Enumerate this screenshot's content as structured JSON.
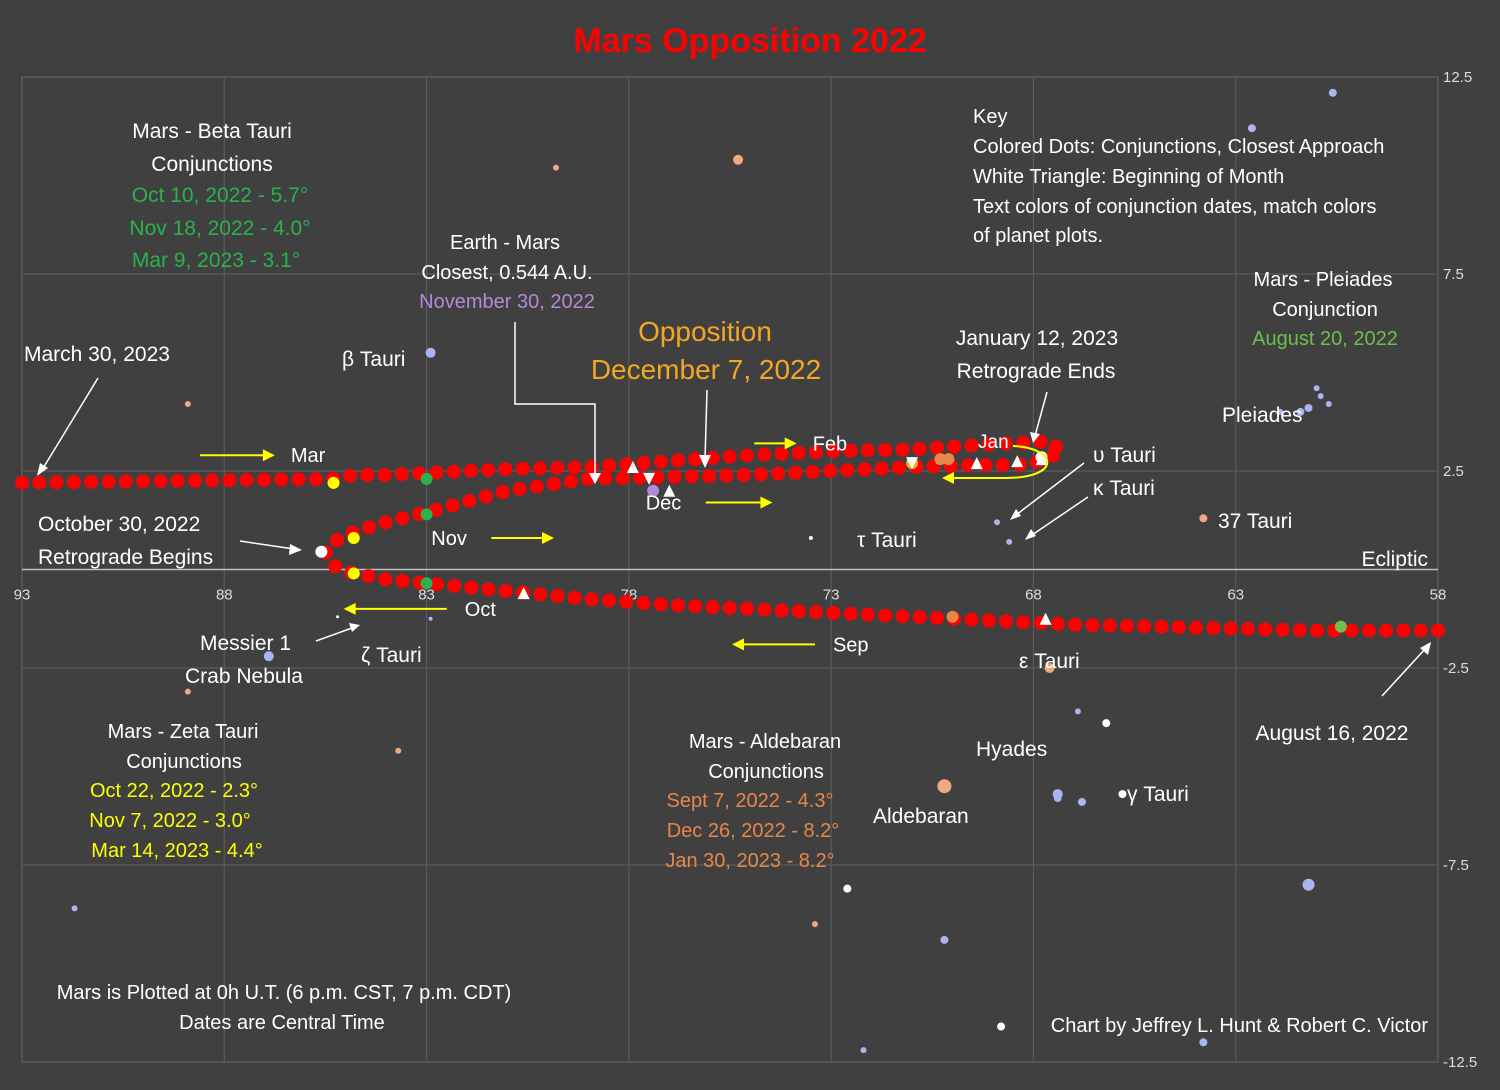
{
  "chart_data": {
    "type": "scatter",
    "title": "Mars Opposition 2022",
    "xlim": [
      93,
      58
    ],
    "ylim": [
      -12.5,
      12.5
    ],
    "x_ticks": [
      93,
      88,
      83,
      78,
      73,
      68,
      63,
      58
    ],
    "y_ticks": [
      12.5,
      7.5,
      2.5,
      -2.5,
      -7.5,
      -12.5
    ],
    "grid": true,
    "ecliptic_label": "Ecliptic",
    "colors": {
      "background": "#404040",
      "title": "#ff0000",
      "mars": "#ff0000",
      "text": "#ffffff",
      "green": "#2bb24c",
      "lavender": "#b38ad6",
      "gold": "#f5a623",
      "yellow": "#ffff00",
      "orange": "#e8864a",
      "light_green": "#6fbf4a",
      "star_blue": "#aab4f0",
      "star_orange": "#f0a880",
      "star_white": "#ffffff"
    },
    "mars_path": {
      "x": [
        93,
        85.3,
        84.8,
        84.0,
        83.0,
        81.0,
        79.0,
        77.0,
        75.0,
        73.0,
        71.0,
        69.5,
        68.7,
        67.6,
        67.3,
        67.8,
        68.4,
        69.4,
        71.0,
        73.0,
        75.0,
        77.0,
        79.0,
        81.0,
        83.0,
        84.0,
        84.8,
        85.3,
        85.5,
        85.3,
        84.8,
        84.0,
        83.0,
        81.0,
        79.0,
        77.0,
        75.0,
        73.0,
        71.0,
        69.0,
        67.0,
        65.0,
        63.0,
        61.0,
        58.0
      ],
      "y": [
        2.2,
        2.3,
        2.4,
        2.4,
        2.45,
        2.55,
        2.6,
        2.75,
        2.9,
        3.0,
        3.05,
        3.15,
        3.2,
        3.25,
        3.0,
        2.75,
        2.65,
        2.65,
        2.6,
        2.5,
        2.4,
        2.35,
        2.3,
        2.0,
        1.45,
        1.2,
        0.95,
        0.7,
        0.45,
        0.1,
        -0.1,
        -0.25,
        -0.35,
        -0.55,
        -0.75,
        -0.9,
        -1.0,
        -1.1,
        -1.2,
        -1.3,
        -1.4,
        -1.45,
        -1.5,
        -1.55,
        -1.55
      ]
    },
    "mars_count": 170,
    "conjunction_dots": [
      {
        "x": 85.3,
        "y": 2.2,
        "color": "yellow"
      },
      {
        "x": 83.0,
        "y": 2.3,
        "color": "green"
      },
      {
        "x": 83.0,
        "y": 1.4,
        "color": "green"
      },
      {
        "x": 84.8,
        "y": 0.8,
        "color": "yellow"
      },
      {
        "x": 84.8,
        "y": -0.1,
        "color": "yellow"
      },
      {
        "x": 83.0,
        "y": -0.35,
        "color": "green"
      },
      {
        "x": 71.0,
        "y": 2.7,
        "color": "gold"
      },
      {
        "x": 77.4,
        "y": 2.0,
        "color": "lavender"
      },
      {
        "x": 70.1,
        "y": 2.8,
        "color": "orange"
      },
      {
        "x": 70.3,
        "y": 2.8,
        "color": "orange"
      },
      {
        "x": 70.0,
        "y": -1.2,
        "color": "orange"
      },
      {
        "x": 60.4,
        "y": -1.45,
        "color": "light_green"
      }
    ],
    "month_triangles": [
      {
        "x": 77.5,
        "y": 2.3,
        "dir": "down"
      },
      {
        "x": 77.9,
        "y": 2.6,
        "dir": "up"
      },
      {
        "x": 77.0,
        "y": 2.0,
        "dir": "up"
      },
      {
        "x": 71.0,
        "y": 2.7,
        "dir": "down"
      },
      {
        "x": 69.4,
        "y": 2.7,
        "dir": "up"
      },
      {
        "x": 67.8,
        "y": 2.8,
        "dir": "up"
      },
      {
        "x": 68.4,
        "y": 2.75,
        "dir": "up"
      },
      {
        "x": 80.6,
        "y": -0.6,
        "dir": "up"
      },
      {
        "x": 67.7,
        "y": -1.25,
        "dir": "up"
      }
    ],
    "special_points": [
      {
        "x": 85.6,
        "y": 0.45,
        "name": "retrograde-begins"
      },
      {
        "x": 67.8,
        "y": 2.85,
        "name": "retrograde-ends"
      }
    ],
    "stars": [
      {
        "x": 82.9,
        "y": 5.5,
        "size": 5,
        "color": "star_blue"
      },
      {
        "x": 82.9,
        "y": -1.25,
        "size": 2,
        "color": "star_blue"
      },
      {
        "x": 85.2,
        "y": -1.2,
        "size": 1.5,
        "color": "star_white"
      },
      {
        "x": 86.9,
        "y": -2.2,
        "size": 5,
        "color": "star_blue"
      },
      {
        "x": 88.9,
        "y": 4.2,
        "size": 3,
        "color": "star_orange"
      },
      {
        "x": 88.9,
        "y": -3.1,
        "size": 3,
        "color": "star_orange"
      },
      {
        "x": 83.7,
        "y": -4.6,
        "size": 3,
        "color": "star_orange"
      },
      {
        "x": 91.7,
        "y": -8.6,
        "size": 3,
        "color": "star_blue"
      },
      {
        "x": 79.8,
        "y": 10.2,
        "size": 3,
        "color": "star_orange"
      },
      {
        "x": 75.3,
        "y": 10.4,
        "size": 5,
        "color": "star_orange"
      },
      {
        "x": 73.5,
        "y": 0.8,
        "size": 2,
        "color": "star_white"
      },
      {
        "x": 68.9,
        "y": 1.2,
        "size": 3,
        "color": "star_blue"
      },
      {
        "x": 68.6,
        "y": 0.7,
        "size": 3,
        "color": "star_blue"
      },
      {
        "x": 63.8,
        "y": 1.3,
        "size": 4,
        "color": "star_orange"
      },
      {
        "x": 61.9,
        "y": 4.0,
        "size": 3,
        "color": "star_blue"
      },
      {
        "x": 61.4,
        "y": 4.0,
        "size": 4,
        "color": "star_blue"
      },
      {
        "x": 61.2,
        "y": 4.1,
        "size": 4,
        "color": "star_blue"
      },
      {
        "x": 61.0,
        "y": 4.6,
        "size": 3,
        "color": "star_blue"
      },
      {
        "x": 60.9,
        "y": 4.4,
        "size": 3,
        "color": "star_blue"
      },
      {
        "x": 60.7,
        "y": 4.2,
        "size": 3,
        "color": "star_blue"
      },
      {
        "x": 62.6,
        "y": 11.2,
        "size": 4,
        "color": "star_blue"
      },
      {
        "x": 60.6,
        "y": 12.1,
        "size": 4,
        "color": "star_blue"
      },
      {
        "x": 67.6,
        "y": -2.5,
        "size": 5,
        "color": "star_orange"
      },
      {
        "x": 66.9,
        "y": -3.6,
        "size": 3,
        "color": "star_blue"
      },
      {
        "x": 66.2,
        "y": -3.9,
        "size": 4,
        "color": "star_white"
      },
      {
        "x": 70.2,
        "y": -5.5,
        "size": 7,
        "color": "star_orange"
      },
      {
        "x": 67.4,
        "y": -5.7,
        "size": 5,
        "color": "star_blue"
      },
      {
        "x": 67.4,
        "y": -5.8,
        "size": 4,
        "color": "star_blue"
      },
      {
        "x": 66.8,
        "y": -5.9,
        "size": 4,
        "color": "star_blue"
      },
      {
        "x": 65.8,
        "y": -5.7,
        "size": 4,
        "color": "star_white"
      },
      {
        "x": 61.2,
        "y": -8.0,
        "size": 6,
        "color": "star_blue"
      },
      {
        "x": 72.6,
        "y": -8.1,
        "size": 4,
        "color": "star_white"
      },
      {
        "x": 73.4,
        "y": -9.0,
        "size": 3,
        "color": "star_orange"
      },
      {
        "x": 70.2,
        "y": -9.4,
        "size": 4,
        "color": "star_blue"
      },
      {
        "x": 68.8,
        "y": -11.6,
        "size": 4,
        "color": "star_white"
      },
      {
        "x": 72.2,
        "y": -12.2,
        "size": 3,
        "color": "star_blue"
      },
      {
        "x": 63.8,
        "y": -12.0,
        "size": 4,
        "color": "star_blue"
      }
    ],
    "month_arrows": [
      {
        "label": "Mar",
        "x": 87.4,
        "y": 2.9,
        "x1": 88.6,
        "x2": 86.8,
        "label_side": "right"
      },
      {
        "label": "Feb",
        "x": 73.1,
        "y": 3.2,
        "x1": 74.9,
        "x2": 73.9,
        "label_side": "right"
      },
      {
        "label": "Dec",
        "x": 75.4,
        "y": 1.7,
        "x1": 76.1,
        "x2": 74.5,
        "label_side": "left"
      },
      {
        "label": "Nov",
        "x": 82.5,
        "y": 0.8,
        "x1": 81.4,
        "x2": 79.9,
        "label_side": "left"
      },
      {
        "label": "Oct",
        "x": 81.0,
        "y": -1.0,
        "x1": 82.5,
        "x2": 85.0,
        "label_side": "right"
      },
      {
        "label": "Sep",
        "x": 72.5,
        "y": -1.9,
        "x1": 73.4,
        "x2": 75.4,
        "label_side": "right"
      }
    ],
    "annotations": {
      "beta": {
        "title1": "Mars - Beta Tauri",
        "title2": "Conjunctions",
        "dates": [
          "Oct 10, 2022 - 5.7°",
          "Nov 18, 2022 - 4.0°",
          "Mar 9, 2023 - 3.1°"
        ]
      },
      "earth": {
        "title1": "Earth - Mars",
        "title2": "Closest, 0.544 A.U.",
        "date": "November 30, 2022"
      },
      "opposition": {
        "line1": "Opposition",
        "line2": "December 7, 2022"
      },
      "key": {
        "title": "Key",
        "lines": [
          "Colored Dots: Conjunctions, Closest Approach",
          "White Triangle: Beginning of Month",
          "Text colors of conjunction dates, match colors",
          "of planet plots."
        ]
      },
      "pleiades": {
        "title1": "Mars - Pleiades",
        "title2": "Conjunction",
        "date": "August 20, 2022"
      },
      "march30": "March 30, 2023",
      "jan12": {
        "line1": "January 12, 2023",
        "line2": "Retrograde  Ends"
      },
      "oct30": {
        "line1": "October 30, 2022",
        "line2": "Retrograde Begins"
      },
      "aug16": "August 16, 2022",
      "jan_label": "Jan",
      "messier": {
        "line1": "Messier 1",
        "line2": "Crab Nebula"
      },
      "zeta": {
        "title1": "Mars - Zeta Tauri",
        "title2": "Conjunctions",
        "dates": [
          "Oct 22, 2022 - 2.3°",
          "Nov 7, 2022 - 3.0°",
          "Mar 14, 2023 - 4.4°"
        ]
      },
      "aldebaran": {
        "title1": "Mars - Aldebaran",
        "title2": "Conjunctions",
        "dates": [
          "Sept 7, 2022 - 4.3°",
          "Dec 26, 2022 - 8.2°",
          "Jan 30, 2023 - 8.2°"
        ]
      },
      "note": {
        "line1": "Mars is Plotted at 0h U.T. (6 p.m. CST, 7 p.m. CDT)",
        "line2": "Dates are Central Time"
      },
      "credit": "Chart by Jeffrey L. Hunt & Robert C. Victor"
    },
    "star_labels": {
      "beta_tauri": "β Tauri",
      "zeta_tauri": "ζ Tauri",
      "tau_tauri": "τ Tauri",
      "upsilon_tauri": "υ Tauri",
      "kappa_tauri": "κ Tauri",
      "tauri_37": "37 Tauri",
      "pleiades": "Pleiades",
      "epsilon_tauri": "ε Tauri",
      "hyades": "Hyades",
      "aldebaran": "Aldebaran",
      "gamma_tauri": "γ Tauri"
    }
  }
}
